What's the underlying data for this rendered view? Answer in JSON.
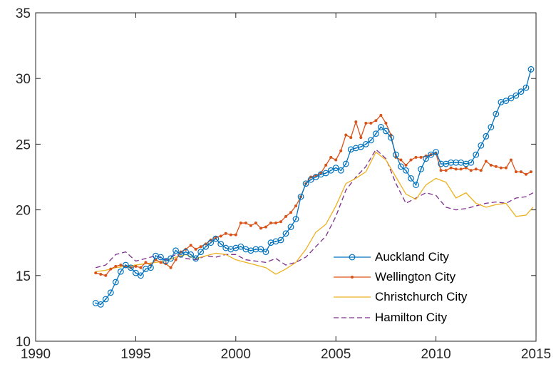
{
  "chart_data": {
    "type": "line",
    "xlim": [
      1990,
      2015
    ],
    "ylim": [
      10,
      35
    ],
    "xticks": [
      1990,
      1995,
      2000,
      2005,
      2010,
      2015
    ],
    "yticks": [
      10,
      15,
      20,
      25,
      30,
      35
    ],
    "xtick_labels": [
      "1990",
      "1995",
      "2000",
      "2005",
      "2010",
      "2015"
    ],
    "ytick_labels": [
      "10",
      "15",
      "20",
      "25",
      "30",
      "35"
    ],
    "grid": false,
    "legend_position": "bottom-right",
    "series": [
      {
        "name": "Auckland City",
        "color": "#0072BD",
        "marker": "circle",
        "dash": "solid",
        "x": [
          1993.0,
          1993.25,
          1993.5,
          1993.75,
          1994.0,
          1994.25,
          1994.5,
          1994.75,
          1995.0,
          1995.25,
          1995.5,
          1995.75,
          1996.0,
          1996.25,
          1996.5,
          1996.75,
          1997.0,
          1997.25,
          1997.5,
          1997.75,
          1998.0,
          1998.25,
          1998.5,
          1998.75,
          1999.0,
          1999.25,
          1999.5,
          1999.75,
          2000.0,
          2000.25,
          2000.5,
          2000.75,
          2001.0,
          2001.25,
          2001.5,
          2001.75,
          2002.0,
          2002.25,
          2002.5,
          2002.75,
          2003.0,
          2003.25,
          2003.5,
          2003.75,
          2004.0,
          2004.25,
          2004.5,
          2004.75,
          2005.0,
          2005.25,
          2005.5,
          2005.75,
          2006.0,
          2006.25,
          2006.5,
          2006.75,
          2007.0,
          2007.25,
          2007.5,
          2007.75,
          2008.0,
          2008.25,
          2008.5,
          2008.75,
          2009.0,
          2009.25,
          2009.5,
          2009.75,
          2010.0,
          2010.25,
          2010.5,
          2010.75,
          2011.0,
          2011.25,
          2011.5,
          2011.75,
          2012.0,
          2012.25,
          2012.5,
          2012.75,
          2013.0,
          2013.25,
          2013.5,
          2013.75,
          2014.0,
          2014.25,
          2014.5,
          2014.75
        ],
        "y": [
          12.9,
          12.8,
          13.2,
          13.7,
          14.5,
          15.3,
          15.8,
          15.6,
          15.2,
          15.0,
          15.5,
          15.6,
          16.5,
          16.4,
          16.1,
          16.3,
          16.9,
          16.6,
          16.8,
          16.6,
          16.3,
          16.8,
          17.2,
          17.5,
          17.8,
          17.4,
          17.1,
          17.0,
          17.1,
          17.2,
          17.0,
          16.9,
          17.0,
          17.0,
          16.8,
          17.5,
          17.6,
          17.7,
          18.2,
          18.7,
          19.3,
          21.0,
          22.0,
          22.3,
          22.5,
          22.7,
          22.8,
          23.0,
          23.2,
          23.0,
          23.5,
          24.6,
          24.7,
          24.8,
          25.0,
          25.3,
          25.8,
          26.3,
          26.0,
          25.5,
          24.2,
          23.3,
          23.0,
          22.4,
          21.9,
          23.1,
          23.9,
          24.2,
          24.4,
          23.5,
          23.5,
          23.6,
          23.6,
          23.6,
          23.5,
          23.6,
          24.2,
          24.9,
          25.6,
          26.3,
          27.3,
          28.2,
          28.3,
          28.5,
          28.7,
          29.0,
          29.3,
          30.7
        ]
      },
      {
        "name": "Wellington City",
        "color": "#D95319",
        "marker": "dot",
        "dash": "solid",
        "x": [
          1993.0,
          1993.25,
          1993.5,
          1993.75,
          1994.0,
          1994.25,
          1994.5,
          1994.75,
          1995.0,
          1995.25,
          1995.5,
          1995.75,
          1996.0,
          1996.25,
          1996.5,
          1996.75,
          1997.0,
          1997.25,
          1997.5,
          1997.75,
          1998.0,
          1998.25,
          1998.5,
          1998.75,
          1999.0,
          1999.25,
          1999.5,
          1999.75,
          2000.0,
          2000.25,
          2000.5,
          2000.75,
          2001.0,
          2001.25,
          2001.5,
          2001.75,
          2002.0,
          2002.25,
          2002.5,
          2002.75,
          2003.0,
          2003.25,
          2003.5,
          2003.75,
          2004.0,
          2004.25,
          2004.5,
          2004.75,
          2005.0,
          2005.25,
          2005.5,
          2005.75,
          2006.0,
          2006.25,
          2006.5,
          2006.75,
          2007.0,
          2007.25,
          2007.5,
          2007.75,
          2008.0,
          2008.25,
          2008.5,
          2008.75,
          2009.0,
          2009.25,
          2009.5,
          2009.75,
          2010.0,
          2010.25,
          2010.5,
          2010.75,
          2011.0,
          2011.25,
          2011.5,
          2011.75,
          2012.0,
          2012.25,
          2012.5,
          2012.75,
          2013.0,
          2013.25,
          2013.5,
          2013.75,
          2014.0,
          2014.25,
          2014.5,
          2014.75
        ],
        "y": [
          15.2,
          15.1,
          15.0,
          15.5,
          15.7,
          15.8,
          15.7,
          15.6,
          15.7,
          15.6,
          16.0,
          15.8,
          16.2,
          16.0,
          15.9,
          15.6,
          16.2,
          16.8,
          17.0,
          17.3,
          17.0,
          17.2,
          17.4,
          17.7,
          17.9,
          18.0,
          18.2,
          18.1,
          18.1,
          19.0,
          19.0,
          18.8,
          19.0,
          18.6,
          18.7,
          19.0,
          19.0,
          19.1,
          19.5,
          19.8,
          20.3,
          21.0,
          22.0,
          22.5,
          22.6,
          22.8,
          23.4,
          24.0,
          23.8,
          24.5,
          25.7,
          25.5,
          26.7,
          25.5,
          26.6,
          26.6,
          26.8,
          27.2,
          26.6,
          25.7,
          24.0,
          23.8,
          23.4,
          23.8,
          24.0,
          24.0,
          24.1,
          24.2,
          24.3,
          23.0,
          23.0,
          23.2,
          23.1,
          23.1,
          23.2,
          23.0,
          23.1,
          23.0,
          23.7,
          23.4,
          23.3,
          23.2,
          23.2,
          23.8,
          22.9,
          22.9,
          22.7,
          22.9
        ]
      },
      {
        "name": "Christchurch City",
        "color": "#EDB120",
        "marker": "none",
        "dash": "solid",
        "x": [
          1993.0,
          1993.5,
          1994.0,
          1994.5,
          1995.0,
          1995.5,
          1996.0,
          1996.5,
          1997.0,
          1997.5,
          1998.0,
          1998.5,
          1999.0,
          1999.5,
          2000.0,
          2000.5,
          2001.0,
          2001.5,
          2002.0,
          2002.5,
          2003.0,
          2003.5,
          2004.0,
          2004.5,
          2005.0,
          2005.5,
          2006.0,
          2006.5,
          2007.0,
          2007.5,
          2008.0,
          2008.5,
          2009.0,
          2009.5,
          2010.0,
          2010.5,
          2011.0,
          2011.5,
          2012.0,
          2012.5,
          2013.0,
          2013.5,
          2014.0,
          2014.5,
          2014.85
        ],
        "y": [
          15.3,
          15.4,
          15.6,
          15.7,
          15.8,
          15.9,
          16.0,
          16.1,
          16.4,
          16.6,
          16.3,
          16.5,
          16.7,
          16.6,
          16.2,
          16.0,
          15.8,
          15.6,
          15.1,
          15.5,
          16.0,
          17.0,
          18.3,
          18.9,
          20.3,
          22.0,
          22.4,
          22.9,
          24.4,
          23.8,
          22.5,
          21.2,
          20.8,
          21.9,
          22.4,
          22.1,
          20.9,
          21.3,
          20.5,
          20.2,
          20.4,
          20.5,
          19.5,
          19.6,
          20.2
        ]
      },
      {
        "name": "Hamilton City",
        "color": "#7E2F8E",
        "marker": "none",
        "dash": "dashed",
        "x": [
          1993.0,
          1993.5,
          1994.0,
          1994.5,
          1995.0,
          1995.5,
          1996.0,
          1996.5,
          1997.0,
          1997.5,
          1998.0,
          1998.5,
          1999.0,
          1999.5,
          2000.0,
          2000.5,
          2001.0,
          2001.5,
          2002.0,
          2002.5,
          2003.0,
          2003.5,
          2004.0,
          2004.5,
          2005.0,
          2005.5,
          2006.0,
          2006.5,
          2007.0,
          2007.5,
          2008.0,
          2008.5,
          2009.0,
          2009.5,
          2010.0,
          2010.5,
          2011.0,
          2011.5,
          2012.0,
          2012.5,
          2013.0,
          2013.5,
          2014.0,
          2014.5,
          2014.85
        ],
        "y": [
          15.6,
          15.8,
          16.6,
          16.8,
          16.1,
          16.3,
          16.5,
          16.2,
          16.6,
          16.3,
          16.2,
          16.5,
          16.4,
          16.6,
          16.6,
          16.2,
          16.1,
          16.0,
          16.3,
          15.8,
          16.0,
          16.4,
          17.2,
          18.0,
          19.5,
          21.5,
          22.5,
          23.3,
          24.6,
          23.9,
          22.0,
          20.5,
          20.9,
          21.3,
          21.1,
          20.2,
          20.0,
          20.1,
          20.3,
          20.5,
          20.6,
          20.5,
          20.9,
          21.0,
          21.3
        ]
      }
    ]
  }
}
